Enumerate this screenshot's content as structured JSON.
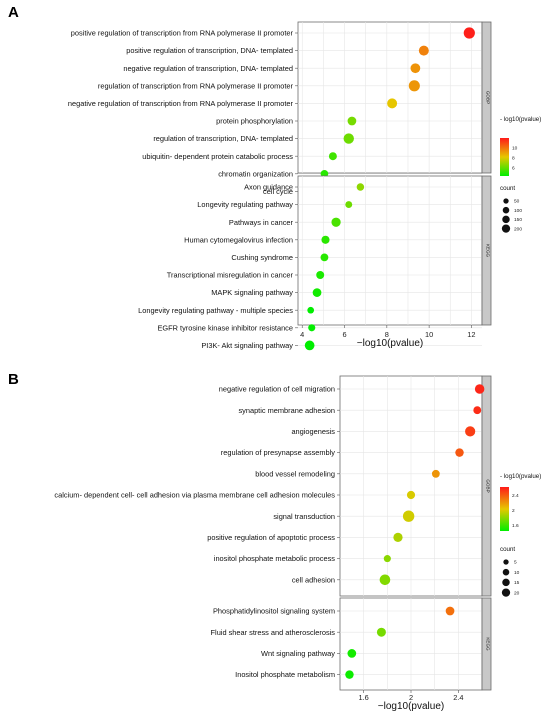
{
  "chart_data": [
    {
      "panel": "A",
      "type": "scatter",
      "xlabel": "−log10(pvalue)",
      "xticks": [
        4,
        6,
        8,
        10,
        12
      ],
      "xlim": [
        3.8,
        12.5
      ],
      "facets": [
        {
          "name": "GOBP",
          "terms": [
            {
              "label": "positive regulation of transcription from RNA polymerase II promoter",
              "x": 11.9,
              "count": 210
            },
            {
              "label": "positive regulation of transcription, DNA- templated",
              "x": 9.75,
              "count": 150
            },
            {
              "label": "negative regulation of transcription, DNA- templated",
              "x": 9.35,
              "count": 140
            },
            {
              "label": "regulation of transcription from RNA polymerase II promoter",
              "x": 9.3,
              "count": 205
            },
            {
              "label": "negative regulation of transcription from RNA polymerase II promoter",
              "x": 8.25,
              "count": 150
            },
            {
              "label": "protein phosphorylation",
              "x": 6.35,
              "count": 100
            },
            {
              "label": "regulation of transcription, DNA- templated",
              "x": 6.2,
              "count": 170
            },
            {
              "label": "ubiquitin- dependent protein catabolic process",
              "x": 5.45,
              "count": 75
            },
            {
              "label": "chromatin organization",
              "x": 5.05,
              "count": 65
            },
            {
              "label": "cell cycle",
              "x": 4.95,
              "count": 90
            }
          ]
        },
        {
          "name": "KEGG",
          "terms": [
            {
              "label": "Axon guidance",
              "x": 6.75,
              "count": 60
            },
            {
              "label": "Longevity regulating pathway",
              "x": 6.2,
              "count": 45
            },
            {
              "label": "Pathways in cancer",
              "x": 5.6,
              "count": 120
            },
            {
              "label": "Human cytomegalovirus infection",
              "x": 5.1,
              "count": 80
            },
            {
              "label": "Cushing syndrome",
              "x": 5.05,
              "count": 70
            },
            {
              "label": "Transcriptional misregulation in cancer",
              "x": 4.85,
              "count": 75
            },
            {
              "label": "MAPK signaling pathway",
              "x": 4.7,
              "count": 100
            },
            {
              "label": "Longevity regulating pathway - multiple species",
              "x": 4.4,
              "count": 40
            },
            {
              "label": "EGFR tyrosine kinase inhibitor resistance",
              "x": 4.45,
              "count": 50
            },
            {
              "label": "PI3K- Akt signaling pathway",
              "x": 4.35,
              "count": 140
            }
          ]
        }
      ],
      "size_legend": {
        "title": "count",
        "values": [
          50,
          100,
          150,
          200
        ]
      },
      "color_legend": {
        "title": "- log10(pvalue)",
        "ticks": [
          6,
          8,
          10
        ],
        "range": [
          4.4,
          12
        ],
        "colors": [
          "#00ee00",
          "#ff1a1a"
        ]
      },
      "grid": true
    },
    {
      "panel": "B",
      "type": "scatter",
      "xlabel": "−log10(pvalue)",
      "xticks": [
        1.6,
        2.0,
        2.4
      ],
      "xlim": [
        1.4,
        2.6
      ],
      "facets": [
        {
          "name": "GOBP",
          "terms": [
            {
              "label": "negative regulation of cell migration",
              "x": 2.58,
              "count": 13
            },
            {
              "label": "synaptic membrane adhesion",
              "x": 2.56,
              "count": 7
            },
            {
              "label": "angiogenesis",
              "x": 2.5,
              "count": 16
            },
            {
              "label": "regulation of presynapse assembly",
              "x": 2.41,
              "count": 9
            },
            {
              "label": "blood vessel remodeling",
              "x": 2.21,
              "count": 7
            },
            {
              "label": "calcium- dependent cell- cell adhesion via plasma membrane cell adhesion molecules",
              "x": 2.0,
              "count": 8
            },
            {
              "label": "signal transduction",
              "x": 1.98,
              "count": 22
            },
            {
              "label": "positive regulation of apoptotic process",
              "x": 1.89,
              "count": 12
            },
            {
              "label": "inositol phosphate metabolic process",
              "x": 1.8,
              "count": 5
            },
            {
              "label": "cell adhesion",
              "x": 1.78,
              "count": 18
            }
          ]
        },
        {
          "name": "KEGG",
          "terms": [
            {
              "label": "Phosphatidylinositol signaling system",
              "x": 2.33,
              "count": 10
            },
            {
              "label": "Fluid shear stress and atherosclerosis",
              "x": 1.75,
              "count": 11
            },
            {
              "label": "Wnt signaling pathway",
              "x": 1.5,
              "count": 10
            },
            {
              "label": "Inositol phosphate metabolism",
              "x": 1.48,
              "count": 9
            }
          ]
        }
      ],
      "size_legend": {
        "title": "count",
        "values": [
          5,
          10,
          15,
          20
        ]
      },
      "color_legend": {
        "title": "- log10(pvalue)",
        "ticks": [
          1.6,
          2.0,
          2.4
        ],
        "range": [
          1.45,
          2.62
        ],
        "colors": [
          "#00ee00",
          "#ff1a1a"
        ]
      },
      "grid": true
    }
  ]
}
